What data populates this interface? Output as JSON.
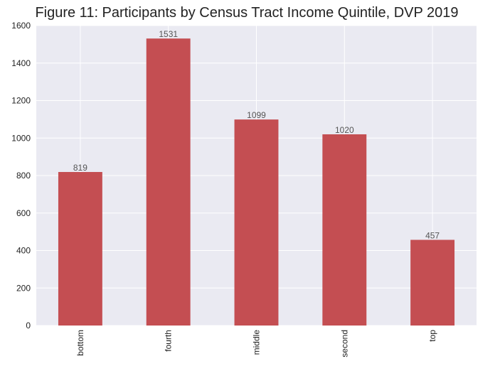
{
  "chart_data": {
    "type": "bar",
    "title": "Figure 11: Participants by Census Tract Income Quintile, DVP 2019",
    "xlabel": "",
    "ylabel": "",
    "categories": [
      "bottom",
      "fourth",
      "middle",
      "second",
      "top"
    ],
    "values": [
      819,
      1531,
      1099,
      1020,
      457
    ],
    "data_labels": [
      "819",
      "1531",
      "1099",
      "1020",
      "457"
    ],
    "ylim": [
      0,
      1600
    ],
    "yticks": [
      0,
      200,
      400,
      600,
      800,
      1000,
      1200,
      1400,
      1600
    ],
    "ytick_labels": [
      "0",
      "200",
      "400",
      "600",
      "800",
      "1000",
      "1200",
      "1400",
      "1600"
    ],
    "grid": true,
    "legend": "none",
    "x_tick_rotation": "vertical",
    "colors": {
      "bar": "#C44E52",
      "plot_background": "#EAEAF2",
      "grid": "#FFFFFF",
      "text": "#222222",
      "data_label": "#555555"
    }
  }
}
